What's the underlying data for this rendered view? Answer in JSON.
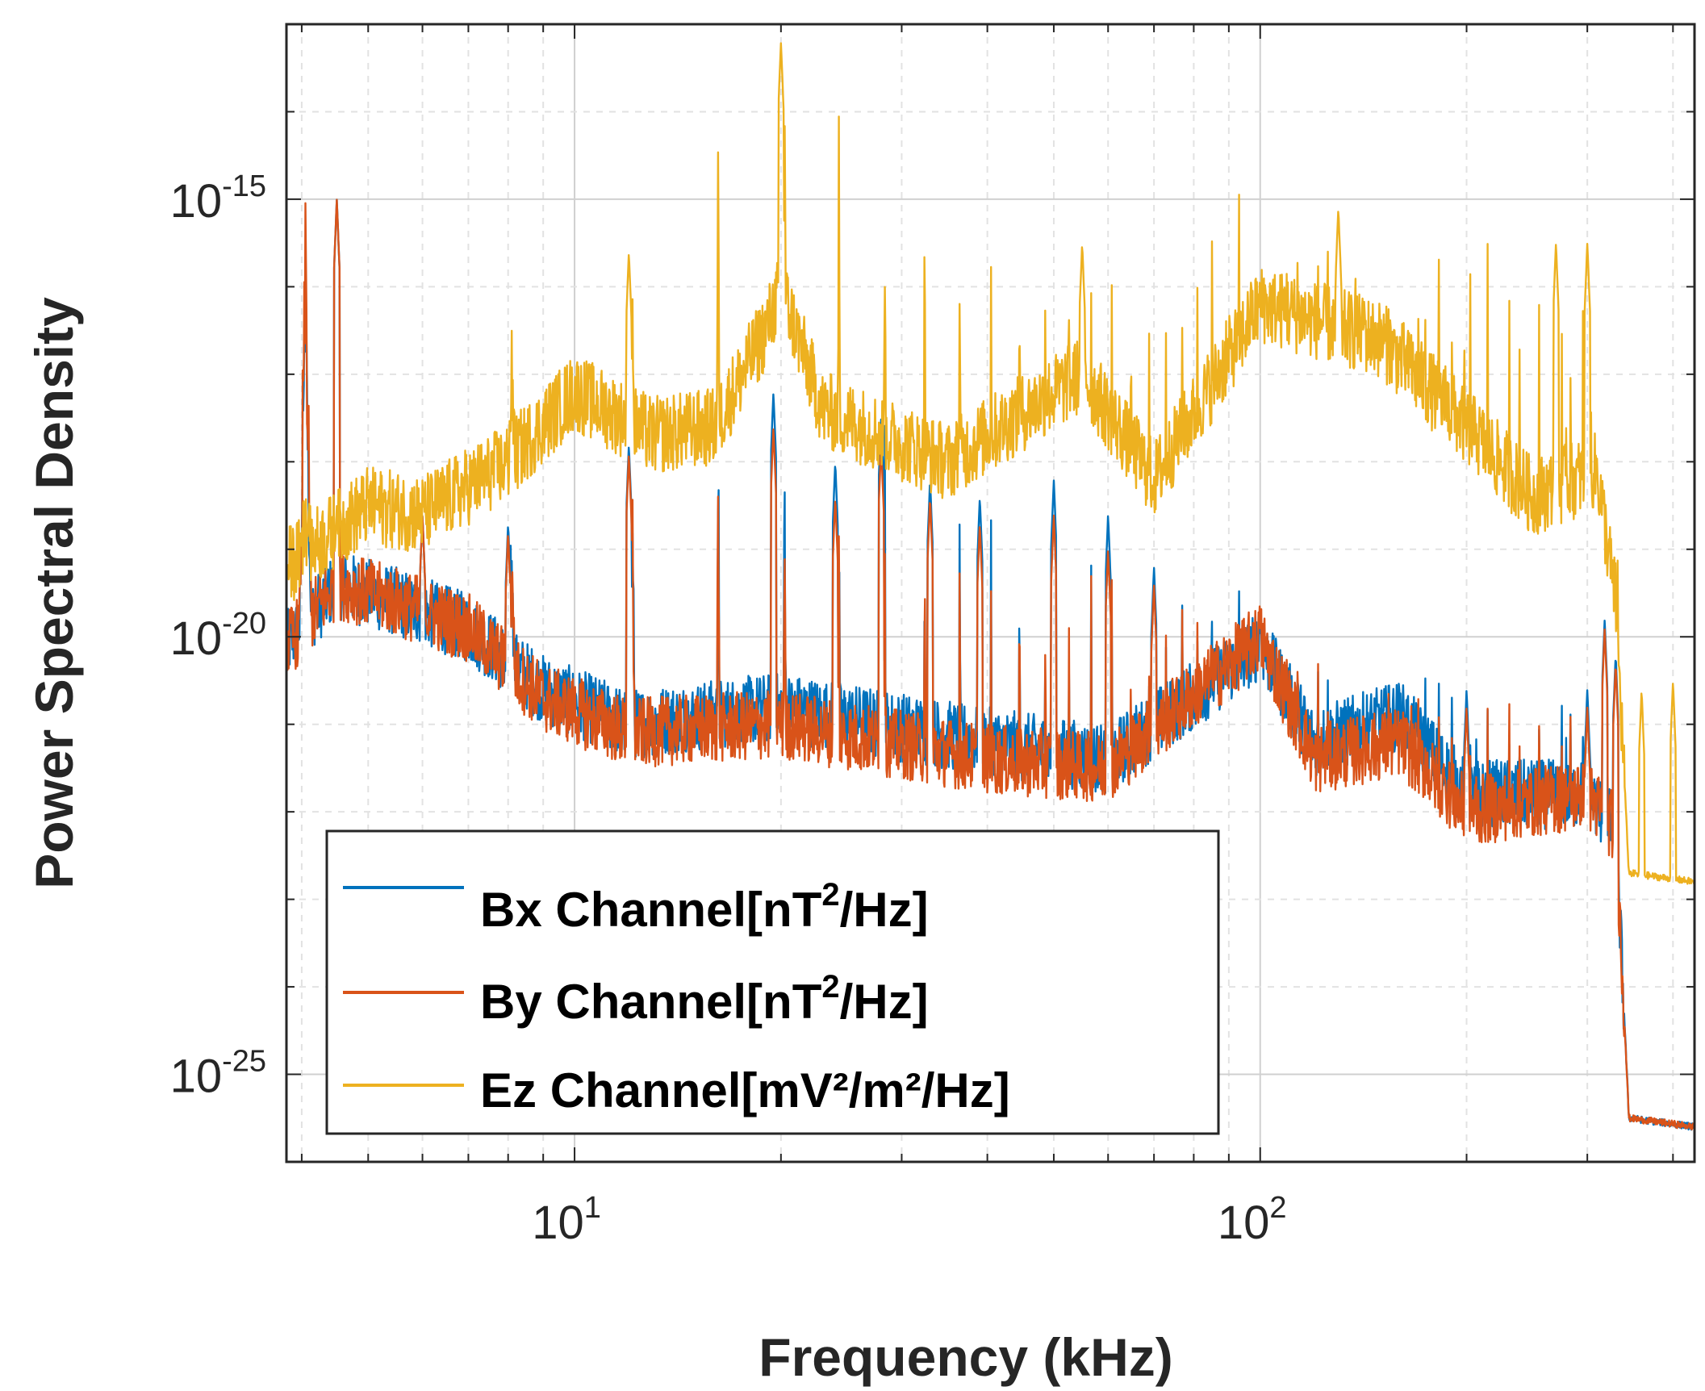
{
  "chart_data": {
    "type": "line",
    "title": "",
    "xlabel": "Frequency (kHz)",
    "ylabel": "Power Spectral Density",
    "xscale": "log",
    "yscale": "log",
    "xlim": [
      3.8,
      430
    ],
    "ylim_exponent": [
      -26,
      -13
    ],
    "grid": true,
    "legend_position": "bottom-left",
    "x_ticks": [
      {
        "base": "10",
        "exp": "1",
        "value": 10
      },
      {
        "base": "10",
        "exp": "2",
        "value": 100
      }
    ],
    "y_ticks": [
      {
        "base": "10",
        "exp": "-15",
        "value_exponent": -15
      },
      {
        "base": "10",
        "exp": "-20",
        "value_exponent": -20
      },
      {
        "base": "10",
        "exp": "-25",
        "value_exponent": -25
      }
    ],
    "series": [
      {
        "name": "Bx Channel[nT",
        "unit_sup": "2",
        "unit_tail": "/Hz]",
        "color": "#0072BD",
        "baseline_log10": [
          [
            3.8,
            -20.1
          ],
          [
            4.5,
            -19.4
          ],
          [
            5.5,
            -19.6
          ],
          [
            7,
            -19.9
          ],
          [
            9,
            -20.6
          ],
          [
            12,
            -21.0
          ],
          [
            20,
            -20.8
          ],
          [
            40,
            -21.2
          ],
          [
            60,
            -21.4
          ],
          [
            100,
            -20.1
          ],
          [
            120,
            -21.2
          ],
          [
            160,
            -20.9
          ],
          [
            200,
            -21.8
          ],
          [
            300,
            -21.8
          ],
          [
            330,
            -22.2
          ],
          [
            345,
            -25.5
          ],
          [
            430,
            -25.6
          ]
        ],
        "peaks_log10": [
          [
            4.5,
            -15.0
          ],
          [
            6,
            -18.6
          ],
          [
            8,
            -18.7
          ],
          [
            12,
            -17.8
          ],
          [
            19.5,
            -17.2
          ],
          [
            24,
            -18.0
          ],
          [
            28,
            -17.5
          ],
          [
            33,
            -18.2
          ],
          [
            39,
            -18.4
          ],
          [
            50,
            -18.2
          ],
          [
            60,
            -18.6
          ],
          [
            70,
            -19.2
          ],
          [
            100,
            -19.8
          ],
          [
            200,
            -20.6
          ],
          [
            300,
            -20.6
          ],
          [
            318,
            -19.8
          ],
          [
            330,
            -20.2
          ]
        ]
      },
      {
        "name": "By Channel[nT",
        "unit_sup": "2",
        "unit_tail": "/Hz]",
        "color": "#D95319",
        "baseline_log10": [
          [
            3.8,
            -20.1
          ],
          [
            4.5,
            -19.4
          ],
          [
            5.5,
            -19.6
          ],
          [
            7,
            -19.9
          ],
          [
            9,
            -20.7
          ],
          [
            12,
            -21.1
          ],
          [
            20,
            -21.0
          ],
          [
            40,
            -21.4
          ],
          [
            60,
            -21.5
          ],
          [
            100,
            -20.0
          ],
          [
            120,
            -21.4
          ],
          [
            160,
            -21.2
          ],
          [
            200,
            -22.0
          ],
          [
            300,
            -21.8
          ],
          [
            330,
            -22.2
          ],
          [
            345,
            -25.5
          ],
          [
            430,
            -25.6
          ]
        ],
        "peaks_log10": [
          [
            4.5,
            -15.0
          ],
          [
            6,
            -18.6
          ],
          [
            8,
            -18.8
          ],
          [
            12,
            -17.9
          ],
          [
            19.5,
            -17.6
          ],
          [
            24,
            -18.4
          ],
          [
            28,
            -17.8
          ],
          [
            33,
            -18.4
          ],
          [
            39,
            -18.7
          ],
          [
            50,
            -18.6
          ],
          [
            60,
            -19.0
          ],
          [
            70,
            -19.4
          ],
          [
            100,
            -19.9
          ],
          [
            200,
            -20.8
          ],
          [
            300,
            -20.8
          ],
          [
            318,
            -19.9
          ],
          [
            330,
            -20.3
          ]
        ]
      },
      {
        "name": "Ez Channel[mV²/m²/Hz]",
        "unit_sup": "",
        "unit_tail": "",
        "color": "#EDB120",
        "baseline_log10": [
          [
            3.8,
            -19.2
          ],
          [
            5,
            -18.5
          ],
          [
            6,
            -18.6
          ],
          [
            8,
            -18.0
          ],
          [
            10,
            -17.2
          ],
          [
            13,
            -17.7
          ],
          [
            16,
            -17.6
          ],
          [
            19,
            -16.5
          ],
          [
            20,
            -16.0
          ],
          [
            23,
            -17.4
          ],
          [
            35,
            -18.0
          ],
          [
            55,
            -17.0
          ],
          [
            70,
            -18.2
          ],
          [
            100,
            -16.2
          ],
          [
            150,
            -16.6
          ],
          [
            200,
            -17.6
          ],
          [
            250,
            -18.4
          ],
          [
            310,
            -18.1
          ],
          [
            330,
            -19.6
          ],
          [
            345,
            -22.7
          ],
          [
            430,
            -22.8
          ]
        ],
        "peaks_log10": [
          [
            4.5,
            -18.5
          ],
          [
            12,
            -15.6
          ],
          [
            20,
            -13.2
          ],
          [
            55,
            -15.5
          ],
          [
            130,
            -15.1
          ],
          [
            270,
            -15.5
          ],
          [
            300,
            -15.5
          ],
          [
            360,
            -20.6
          ],
          [
            400,
            -20.5
          ]
        ]
      }
    ]
  }
}
